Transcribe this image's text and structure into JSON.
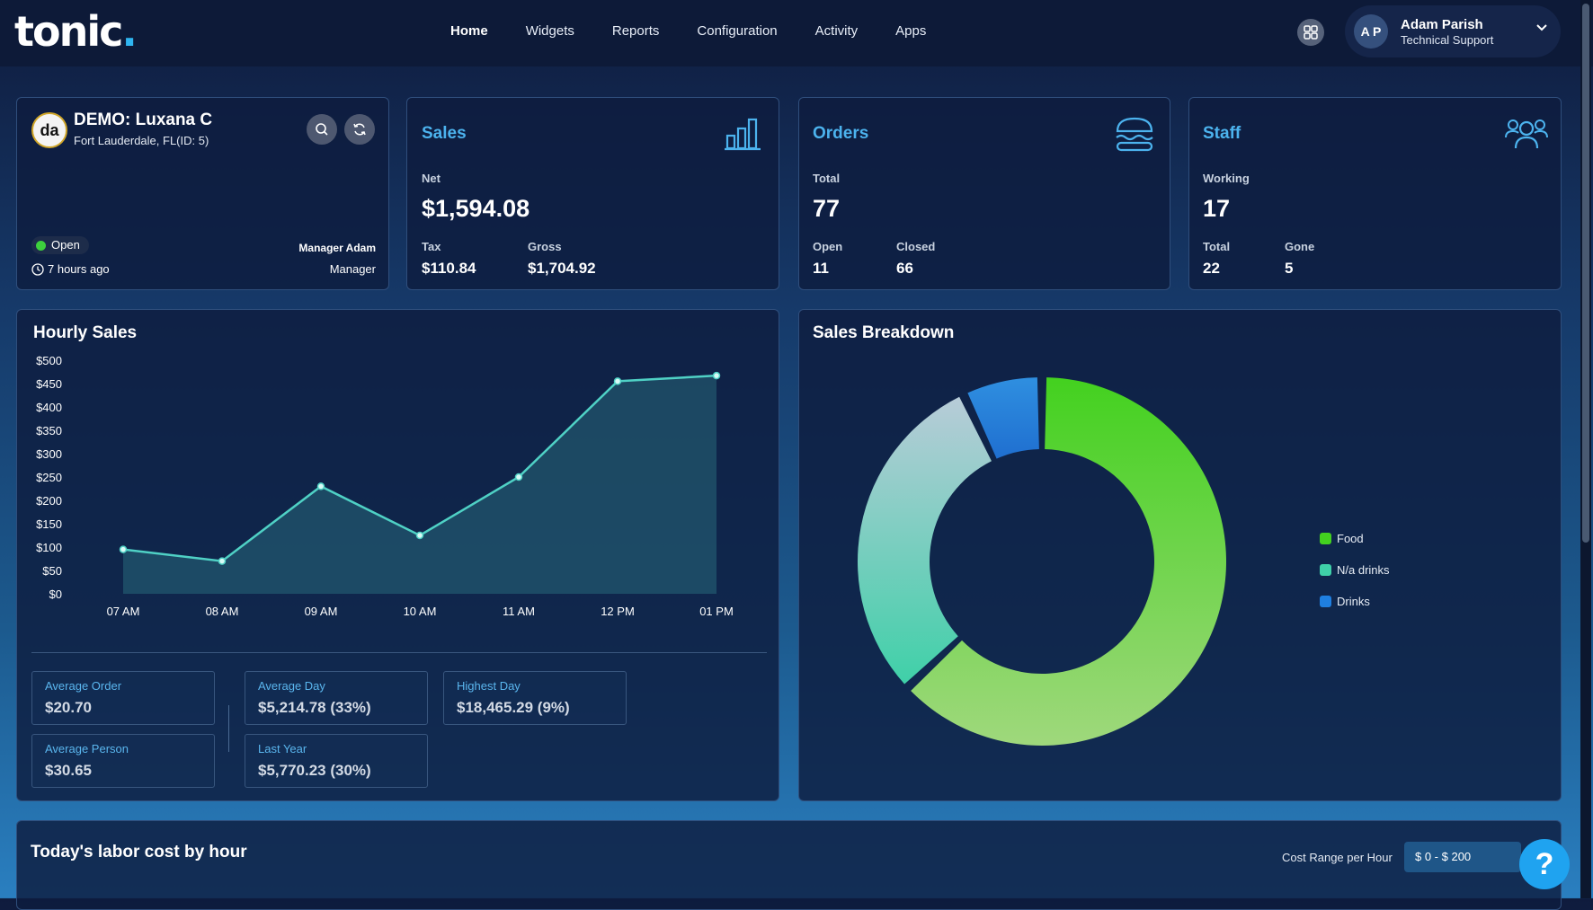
{
  "brand": {
    "logo_text": "tonic",
    "logo_dot": "."
  },
  "nav": {
    "items": [
      "Home",
      "Widgets",
      "Reports",
      "Configuration",
      "Activity",
      "Apps"
    ],
    "active": "Home"
  },
  "user": {
    "initials": "A P",
    "name": "Adam Parish",
    "role": "Technical Support"
  },
  "location": {
    "logo_text": "da",
    "name": "DEMO: Luxana C",
    "address": "Fort Lauderdale, FL(ID: 5)",
    "status": "Open",
    "time_ago": "7 hours ago",
    "manager_name": "Manager Adam",
    "manager_role": "Manager"
  },
  "sales": {
    "title": "Sales",
    "net_label": "Net",
    "net": "$1,594.08",
    "tax_label": "Tax",
    "tax": "$110.84",
    "gross_label": "Gross",
    "gross": "$1,704.92"
  },
  "orders": {
    "title": "Orders",
    "total_label": "Total",
    "total": "77",
    "open_label": "Open",
    "open": "11",
    "closed_label": "Closed",
    "closed": "66"
  },
  "staff": {
    "title": "Staff",
    "working_label": "Working",
    "working": "17",
    "total_label": "Total",
    "total": "22",
    "gone_label": "Gone",
    "gone": "5"
  },
  "hourly": {
    "title": "Hourly Sales",
    "stats": {
      "avg_order_label": "Average Order",
      "avg_order": "$20.70",
      "avg_person_label": "Average Person",
      "avg_person": "$30.65",
      "avg_day_label": "Average Day",
      "avg_day": "$5,214.78 (33%)",
      "last_year_label": "Last Year",
      "last_year": "$5,770.23 (30%)",
      "highest_day_label": "Highest Day",
      "highest_day": "$18,465.29 (9%)"
    }
  },
  "breakdown": {
    "title": "Sales Breakdown"
  },
  "labor": {
    "title": "Today's labor cost by hour",
    "range_label": "Cost Range per Hour",
    "range_value": "$ 0 - $ 200"
  },
  "help": {
    "label": "?"
  },
  "colors": {
    "accent": "#4cb3ee",
    "food": "#43d11f",
    "na_drinks": "#3fd0a8",
    "drinks": "#1f7fe0",
    "line": "#4fd1c5"
  },
  "chart_data": [
    {
      "type": "area",
      "title": "Hourly Sales",
      "categories": [
        "07 AM",
        "08 AM",
        "09 AM",
        "10 AM",
        "11 AM",
        "12 PM",
        "01 PM"
      ],
      "values": [
        95,
        70,
        230,
        125,
        250,
        455,
        467
      ],
      "yticks": [
        "$0",
        "$50",
        "$100",
        "$150",
        "$200",
        "$250",
        "$300",
        "$350",
        "$400",
        "$450",
        "$500"
      ],
      "ylim": [
        0,
        500
      ],
      "grid": false
    },
    {
      "type": "pie",
      "title": "Sales Breakdown",
      "labels": [
        "Food",
        "N/a drinks",
        "Drinks"
      ],
      "values": [
        63,
        30,
        7
      ],
      "legend": "right"
    }
  ]
}
